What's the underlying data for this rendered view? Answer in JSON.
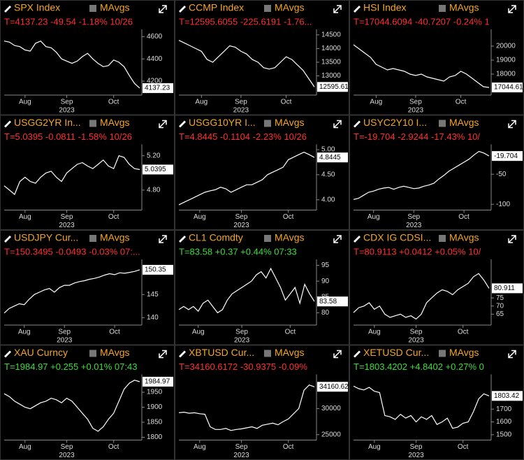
{
  "chart_data": [
    {
      "type": "line",
      "title": "SPX Index",
      "legend": "MAvgs",
      "subtitle": "T=4137.23 -49.54 -1.18% 10/26",
      "subtitle_color": "#ff3030",
      "color": "#ffffff",
      "xlabel": "2023",
      "values": [
        4560,
        4550,
        4520,
        4510,
        4480,
        4470,
        4540,
        4560,
        4510,
        4500,
        4460,
        4400,
        4380,
        4360,
        4380,
        4420,
        4450,
        4400,
        4360,
        4330,
        4340,
        4390,
        4370,
        4330,
        4250,
        4180,
        4137.23
      ],
      "xticks": [
        {
          "value": 4,
          "label": "Aug"
        },
        {
          "value": 12,
          "label": "Sep"
        },
        {
          "value": 21,
          "label": "Oct"
        }
      ],
      "ylim": [
        4100,
        4640
      ],
      "yticks": [
        4200,
        4400,
        4600
      ]
    },
    {
      "type": "line",
      "title": "CCMP Index",
      "legend": "MAvgs",
      "subtitle": "T=12595.6055 -225.6191 -1.76...",
      "subtitle_color": "#ff3030",
      "color": "#ffffff",
      "xlabel": "2023",
      "values": [
        14300,
        14200,
        14100,
        14000,
        13900,
        13600,
        13500,
        13700,
        13900,
        14100,
        14050,
        13900,
        13800,
        13600,
        13500,
        13300,
        13250,
        13300,
        13500,
        13700,
        13600,
        13400,
        13200,
        12900,
        12595.61
      ],
      "xticks": [
        {
          "value": 4,
          "label": "Aug"
        },
        {
          "value": 11,
          "label": "Sep"
        },
        {
          "value": 19,
          "label": "Oct"
        }
      ],
      "ylim": [
        12400,
        14600
      ],
      "yticks": [
        13000,
        13500,
        14000,
        14500
      ]
    },
    {
      "type": "line",
      "title": "HSI Index",
      "legend": "MAvgs",
      "subtitle": "T=17044.6094 -40.7207 -0.24% 1",
      "subtitle_color": "#ff3030",
      "color": "#ffffff",
      "xlabel": "2023",
      "values": [
        20100,
        19800,
        19500,
        19200,
        18700,
        18500,
        18300,
        18400,
        18300,
        18200,
        18000,
        17900,
        18000,
        17800,
        17700,
        17600,
        17500,
        17800,
        17900,
        18200,
        18000,
        17700,
        17400,
        17100,
        17044.61
      ],
      "xticks": [
        {
          "value": 4,
          "label": "Aug"
        },
        {
          "value": 11,
          "label": "Sep"
        },
        {
          "value": 19,
          "label": "Oct"
        }
      ],
      "ylim": [
        16700,
        21000
      ],
      "yticks": [
        18000,
        19000,
        20000
      ]
    },
    {
      "type": "line",
      "title": "USGG2YR In...",
      "legend": "MAvgs",
      "subtitle": "T=5.0395 -0.0811 -1.58% 10/26",
      "subtitle_color": "#ff3030",
      "color": "#ffffff",
      "xlabel": "2023",
      "values": [
        4.85,
        4.8,
        4.75,
        4.9,
        4.95,
        4.9,
        4.88,
        4.95,
        5.0,
        5.02,
        4.95,
        4.9,
        5.0,
        5.05,
        5.1,
        5.12,
        5.08,
        5.05,
        5.1,
        5.15,
        5.08,
        5.05,
        5.2,
        5.18,
        5.1,
        5.05,
        5.0395
      ],
      "xticks": [
        {
          "value": 4,
          "label": "Aug"
        },
        {
          "value": 12,
          "label": "Sep"
        },
        {
          "value": 21,
          "label": "Oct"
        }
      ],
      "ylim": [
        4.6,
        5.3
      ],
      "yticks": [
        {
          "value": 4.8,
          "label": "4.80"
        },
        {
          "value": 5.2,
          "label": "5.20"
        }
      ]
    },
    {
      "type": "line",
      "title": "USGG10YR I...",
      "legend": "MAvgs",
      "subtitle": "T=4.8445 -0.1104 -2.23% 10/26",
      "subtitle_color": "#ff3030",
      "color": "#ffffff",
      "xlabel": "2023",
      "values": [
        3.9,
        3.95,
        4.0,
        4.05,
        4.1,
        4.15,
        4.18,
        4.2,
        4.25,
        4.22,
        4.15,
        4.2,
        4.25,
        4.3,
        4.3,
        4.35,
        4.4,
        4.5,
        4.55,
        4.6,
        4.65,
        4.8,
        4.85,
        4.9,
        4.95,
        4.9,
        4.8445
      ],
      "xticks": [
        {
          "value": 4,
          "label": "Aug"
        },
        {
          "value": 12,
          "label": "Sep"
        },
        {
          "value": 21,
          "label": "Oct"
        }
      ],
      "ylim": [
        3.85,
        5.05
      ],
      "yticks": [
        {
          "value": 4,
          "label": "4.00"
        },
        {
          "value": 4.5,
          "label": "4.50"
        },
        {
          "value": 5,
          "label": "5.00"
        }
      ]
    },
    {
      "type": "line",
      "title": "USYC2Y10 I...",
      "legend": "MAvgs",
      "subtitle": "T=-19.704 -2.9244 -17.43% 10/",
      "subtitle_color": "#ff3030",
      "color": "#ffffff",
      "xlabel": "2023",
      "values": [
        -92,
        -90,
        -85,
        -80,
        -78,
        -75,
        -73,
        -72,
        -75,
        -72,
        -70,
        -72,
        -74,
        -73,
        -70,
        -68,
        -65,
        -58,
        -52,
        -45,
        -40,
        -35,
        -30,
        -25,
        -18,
        -12,
        -15,
        -19.704
      ],
      "xticks": [
        {
          "value": 4,
          "label": "Aug"
        },
        {
          "value": 12,
          "label": "Sep"
        },
        {
          "value": 22,
          "label": "Oct"
        }
      ],
      "ylim": [
        -105,
        -5
      ],
      "yticks": [
        -50,
        -100
      ]
    },
    {
      "type": "line",
      "title": "USDJPY Cur...",
      "legend": "MAvgs",
      "subtitle": "T=150.3495 -0.0493 -0.03% 07:...",
      "subtitle_color": "#ff3030",
      "color": "#ffffff",
      "xlabel": "2023",
      "values": [
        141,
        142,
        142.5,
        143,
        142.8,
        144,
        145,
        145.5,
        146,
        146.3,
        145.5,
        146.5,
        147,
        147,
        147.5,
        147.8,
        148,
        148.3,
        148.5,
        148.8,
        149.2,
        149.5,
        149.3,
        149.7,
        149.6,
        149.8,
        150,
        150.35
      ],
      "xticks": [
        {
          "value": 4,
          "label": "Aug"
        },
        {
          "value": 12,
          "label": "Sep"
        },
        {
          "value": 22,
          "label": "Oct"
        }
      ],
      "ylim": [
        139,
        152
      ],
      "yticks": [
        140,
        145
      ]
    },
    {
      "type": "line",
      "title": "CL1 Comdty",
      "legend": "MAvgs",
      "subtitle": "T=83.58 +0.37 +0.44% 07:33",
      "subtitle_color": "#3ddc3d",
      "color": "#ffffff",
      "xlabel": "2023",
      "values": [
        81,
        82,
        81,
        82,
        80.5,
        83,
        84,
        82,
        80,
        81,
        84,
        86,
        87,
        88,
        89,
        90,
        92,
        93,
        91,
        94,
        91,
        88,
        84,
        86,
        88,
        83,
        89,
        86,
        83.58
      ],
      "xticks": [
        {
          "value": 4,
          "label": "Aug"
        },
        {
          "value": 13,
          "label": "Sep"
        },
        {
          "value": 23,
          "label": "Oct"
        }
      ],
      "ylim": [
        77,
        96
      ],
      "yticks": [
        80,
        85,
        90,
        95
      ]
    },
    {
      "type": "line",
      "title": "CDX IG CDSI...",
      "legend": "MAvgs",
      "subtitle": "T=80.9113 +0.0412 +0.05% 10/",
      "subtitle_color": "#ff3030",
      "color": "#ffffff",
      "xlabel": "2023",
      "values": [
        66,
        69,
        70,
        72,
        68,
        70,
        65,
        63,
        64,
        65,
        63,
        64,
        62,
        65,
        72,
        75,
        78,
        80,
        79,
        77,
        80,
        82,
        84,
        88,
        90,
        86,
        80.911
      ],
      "xticks": [
        {
          "value": 4,
          "label": "Aug"
        },
        {
          "value": 12,
          "label": "Sep"
        },
        {
          "value": 21,
          "label": "Oct"
        }
      ],
      "ylim": [
        60,
        97
      ],
      "yticks": [
        65,
        70,
        75
      ]
    },
    {
      "type": "line",
      "title": "XAU Curncy",
      "legend": "MAvgs",
      "subtitle": "T=1984.97 +0.255 +0.01% 07:43",
      "subtitle_color": "#3ddc3d",
      "color": "#ffffff",
      "xlabel": "2023",
      "values": [
        1945,
        1935,
        1920,
        1910,
        1900,
        1895,
        1905,
        1915,
        1920,
        1930,
        1925,
        1915,
        1930,
        1920,
        1900,
        1880,
        1860,
        1830,
        1820,
        1835,
        1860,
        1880,
        1920,
        1960,
        1980,
        1990,
        1984.97
      ],
      "xticks": [
        {
          "value": 4,
          "label": "Aug"
        },
        {
          "value": 12,
          "label": "Sep"
        },
        {
          "value": 21,
          "label": "Oct"
        }
      ],
      "ylim": [
        1800,
        2000
      ],
      "yticks": [
        1800,
        1850,
        1900,
        1950
      ]
    },
    {
      "type": "line",
      "title": "XBTUSD Cur...",
      "legend": "MAvgs",
      "subtitle": "T=34160.6172 -30.9375 -0.09%",
      "subtitle_color": "#ff3030",
      "color": "#ffffff",
      "xlabel": "2023",
      "values": [
        29200,
        29300,
        29100,
        29200,
        29000,
        28900,
        26500,
        26000,
        26000,
        26200,
        25800,
        26000,
        26100,
        26300,
        26500,
        26200,
        26800,
        27000,
        27200,
        26900,
        27500,
        28000,
        29000,
        30000,
        33500,
        34500,
        34160.62
      ],
      "xticks": [
        {
          "value": 4,
          "label": "Aug"
        },
        {
          "value": 12,
          "label": "Sep"
        },
        {
          "value": 21,
          "label": "Oct"
        }
      ],
      "ylim": [
        24500,
        36000
      ],
      "yticks": [
        25000,
        30000
      ]
    },
    {
      "type": "line",
      "title": "XETUSD Cur...",
      "legend": "MAvgs",
      "subtitle": "T=1803.4202 +4.8402 +0.27% 0",
      "subtitle_color": "#3ddc3d",
      "color": "#ffffff",
      "xlabel": "2023",
      "values": [
        1880,
        1860,
        1850,
        1870,
        1840,
        1830,
        1650,
        1640,
        1620,
        1660,
        1630,
        1650,
        1600,
        1640,
        1620,
        1650,
        1580,
        1600,
        1630,
        1550,
        1560,
        1590,
        1600,
        1680,
        1780,
        1820,
        1803.42
      ],
      "xticks": [
        {
          "value": 4,
          "label": "Aug"
        },
        {
          "value": 12,
          "label": "Sep"
        },
        {
          "value": 21,
          "label": "Oct"
        }
      ],
      "ylim": [
        1480,
        1950
      ],
      "yticks": [
        1500,
        1600,
        1700
      ]
    }
  ]
}
